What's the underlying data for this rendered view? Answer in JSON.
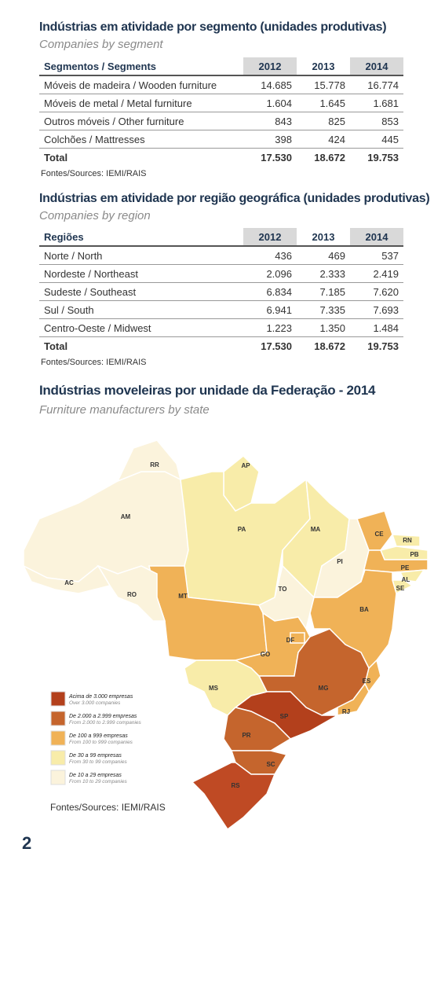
{
  "segment_table": {
    "title": "Indústrias em atividade por segmento (unidades produtivas)",
    "subtitle": "Companies by segment",
    "header": [
      "Segmentos / Segments",
      "2012",
      "2013",
      "2014"
    ],
    "rows": [
      [
        "Móveis de madeira / Wooden furniture",
        "14.685",
        "15.778",
        "16.774"
      ],
      [
        "Móveis de metal / Metal furniture",
        "1.604",
        "1.645",
        "1.681"
      ],
      [
        "Outros móveis / Other furniture",
        "843",
        "825",
        "853"
      ],
      [
        "Colchões / Mattresses",
        "398",
        "424",
        "445"
      ]
    ],
    "total": [
      "Total",
      "17.530",
      "18.672",
      "19.753"
    ],
    "source": "Fontes/Sources: IEMI/RAIS"
  },
  "region_table": {
    "title": "Indústrias em atividade por região geográfica (unidades produtivas)",
    "subtitle": "Companies by region",
    "header": [
      "Regiões",
      "2012",
      "2013",
      "2014"
    ],
    "rows": [
      [
        "Norte / North",
        "436",
        "469",
        "537"
      ],
      [
        "Nordeste / Northeast",
        "2.096",
        "2.333",
        "2.419"
      ],
      [
        "Sudeste / Southeast",
        "6.834",
        "7.185",
        "7.620"
      ],
      [
        "Sul / South",
        "6.941",
        "7.335",
        "7.693"
      ],
      [
        "Centro-Oeste / Midwest",
        "1.223",
        "1.350",
        "1.484"
      ]
    ],
    "total": [
      "Total",
      "17.530",
      "18.672",
      "19.753"
    ],
    "source": "Fontes/Sources: IEMI/RAIS"
  },
  "map": {
    "title": "Indústrias moveleiras por unidade da Federação - 2014",
    "subtitle": "Furniture manufacturers by state",
    "states": [
      {
        "label": "AM",
        "color": "#fbf3dc"
      },
      {
        "label": "RR",
        "color": "#fbf3dc"
      },
      {
        "label": "AP",
        "color": "#f8eca9"
      },
      {
        "label": "PA",
        "color": "#f8eca9"
      },
      {
        "label": "MA",
        "color": "#f8eca9"
      },
      {
        "label": "PI",
        "color": "#fbf3dc"
      },
      {
        "label": "CE",
        "color": "#f0b257"
      },
      {
        "label": "RN",
        "color": "#f8eca9"
      },
      {
        "label": "PB",
        "color": "#f8eca9"
      },
      {
        "label": "PE",
        "color": "#f0b257"
      },
      {
        "label": "AL",
        "color": "#f8eca9"
      },
      {
        "label": "SE",
        "color": "#f8eca9"
      },
      {
        "label": "BA",
        "color": "#f0b257"
      },
      {
        "label": "TO",
        "color": "#fbf3dc"
      },
      {
        "label": "MT",
        "color": "#f0b257"
      },
      {
        "label": "RO",
        "color": "#fbf3dc"
      },
      {
        "label": "AC",
        "color": "#fbf3dc"
      },
      {
        "label": "GO",
        "color": "#f0b257"
      },
      {
        "label": "DF",
        "color": "#f0b257"
      },
      {
        "label": "MG",
        "color": "#c5652d"
      },
      {
        "label": "ES",
        "color": "#f0b257"
      },
      {
        "label": "RJ",
        "color": "#f0b257"
      },
      {
        "label": "SP",
        "color": "#b3401c"
      },
      {
        "label": "MS",
        "color": "#f8eca9"
      },
      {
        "label": "PR",
        "color": "#c5652d"
      },
      {
        "label": "SC",
        "color": "#c5652d"
      },
      {
        "label": "RS",
        "color": "#bf4a24"
      }
    ],
    "legend": [
      {
        "title": "Acima de 3.000 empresas",
        "subtitle": "Over 3.000 companies",
        "color": "#b3401c"
      },
      {
        "title": "De 2.000 a 2.999 empresas",
        "subtitle": "From 2.000 to 2.999 companies",
        "color": "#c5652d"
      },
      {
        "title": "De 100 a 999 empresas",
        "subtitle": "From 100 to 999 companies",
        "color": "#f0b257"
      },
      {
        "title": "De 30 a 99 empresas",
        "subtitle": "From 30 to 99 companies",
        "color": "#f8eca9"
      },
      {
        "title": "De 10 a 29 empresas",
        "subtitle": "From 10 to 29 companies",
        "color": "#fbf3dc"
      }
    ],
    "source": "Fontes/Sources: IEMI/RAIS"
  },
  "page_number": "2"
}
